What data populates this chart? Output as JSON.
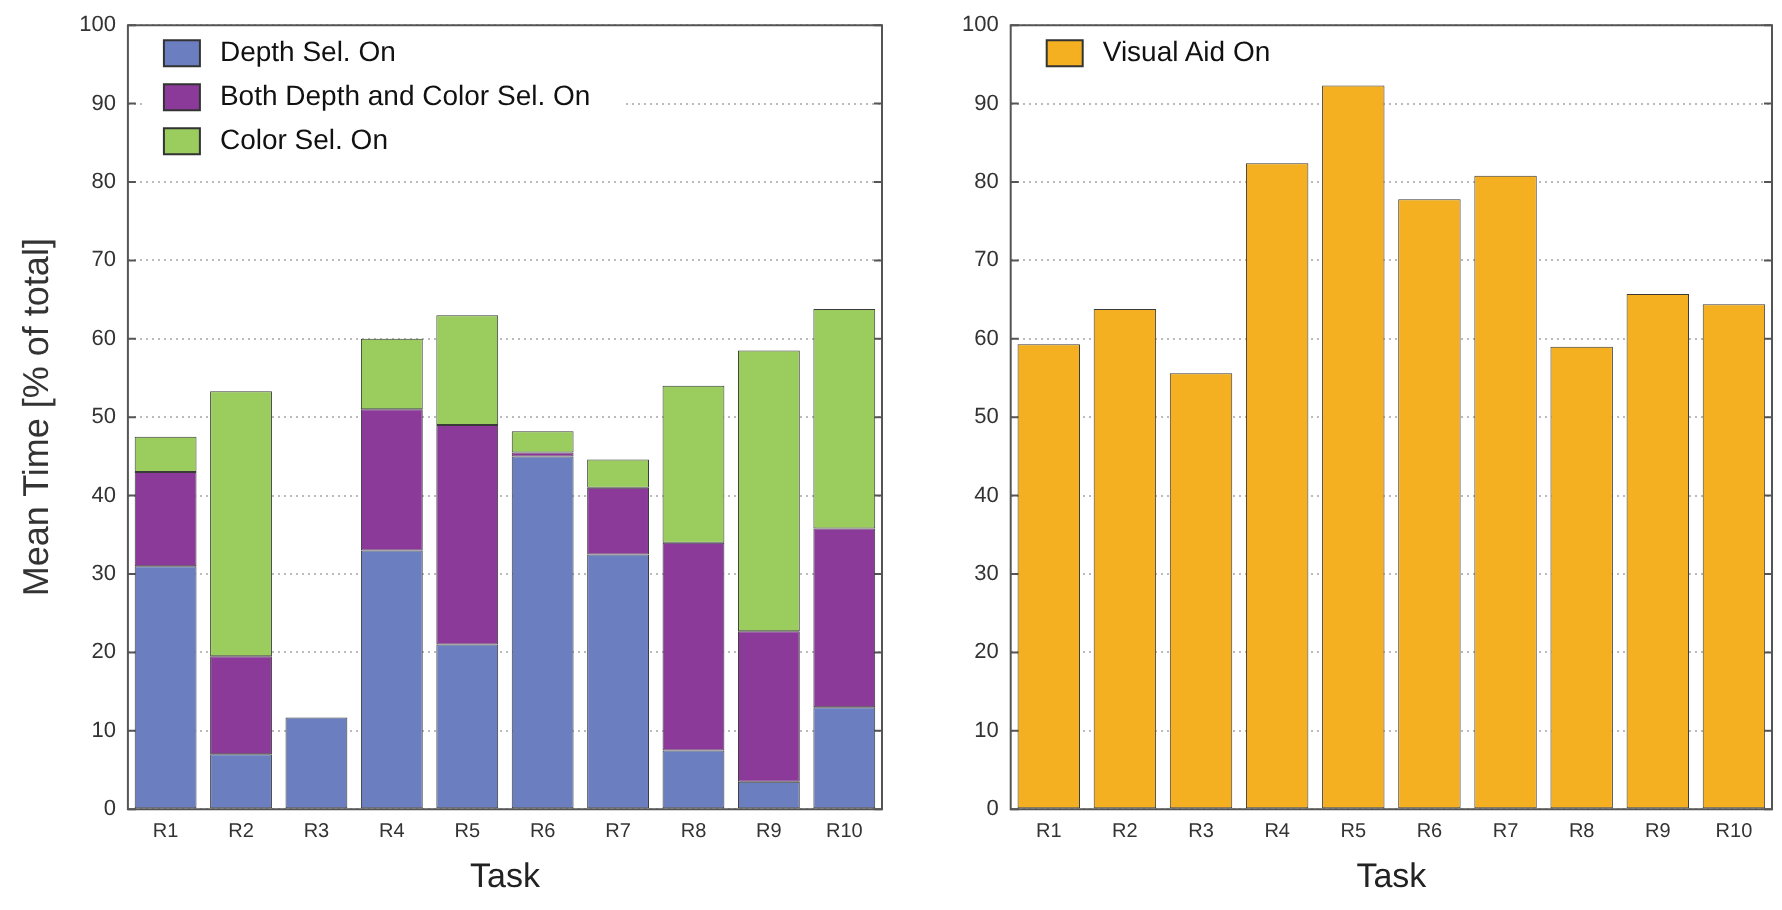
{
  "chart_data": [
    {
      "type": "bar",
      "stacked": true,
      "categories": [
        "R1",
        "R2",
        "R3",
        "R4",
        "R5",
        "R6",
        "R7",
        "R8",
        "R9",
        "R10"
      ],
      "xlabel": "Task",
      "ylabel": "Mean Time [% of total]",
      "ylim": [
        0,
        100
      ],
      "yticks": [
        0,
        10,
        20,
        30,
        40,
        50,
        60,
        70,
        80,
        90,
        100
      ],
      "grid": "y",
      "legend": "top left",
      "series": [
        {
          "name": "Depth Sel. On",
          "color": "#6b7fc0",
          "values": [
            31,
            7,
            11.7,
            33,
            21,
            45,
            32.5,
            7.5,
            3.5,
            13
          ]
        },
        {
          "name": "Both Depth and Color Sel. On",
          "color": "#8b3a9a",
          "values": [
            12,
            12.5,
            0,
            18,
            28,
            0.5,
            8.5,
            26.5,
            19.2,
            22.8
          ]
        },
        {
          "name": "Color Sel. On",
          "color": "#9acd5d",
          "values": [
            4.5,
            33.8,
            0,
            9,
            14,
            2.7,
            3.6,
            20,
            35.8,
            28
          ]
        }
      ]
    },
    {
      "type": "bar",
      "categories": [
        "R1",
        "R2",
        "R3",
        "R4",
        "R5",
        "R6",
        "R7",
        "R8",
        "R9",
        "R10"
      ],
      "xlabel": "Task",
      "ylim": [
        0,
        100
      ],
      "yticks": [
        0,
        10,
        20,
        30,
        40,
        50,
        60,
        70,
        80,
        90,
        100
      ],
      "grid": "y",
      "legend": "top left",
      "series": [
        {
          "name": "Visual Aid On",
          "color": "#f5b021",
          "values": [
            59.3,
            63.8,
            55.6,
            82.4,
            92.3,
            77.8,
            80.8,
            59,
            65.7,
            64.4
          ]
        }
      ]
    }
  ]
}
